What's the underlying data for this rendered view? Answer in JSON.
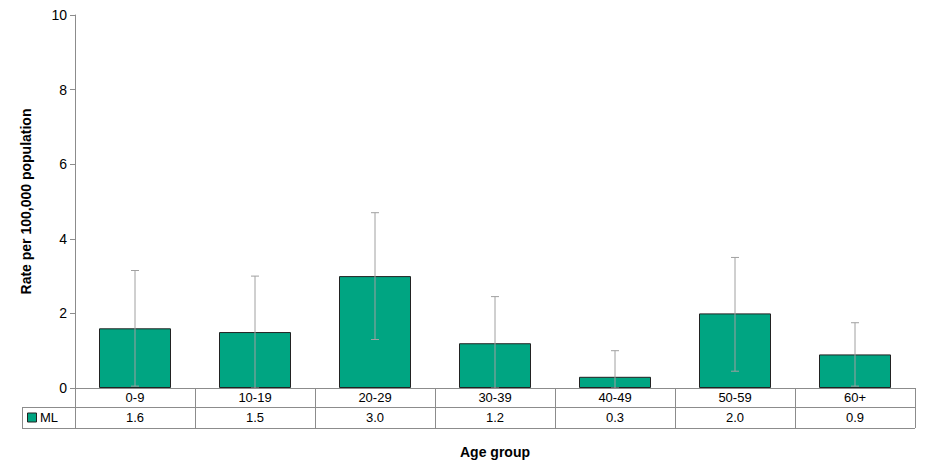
{
  "chart_data": {
    "type": "bar",
    "categories": [
      "0-9",
      "10-19",
      "20-29",
      "30-39",
      "40-49",
      "50-59",
      "60+"
    ],
    "series": [
      {
        "name": "ML",
        "color": "#00a582",
        "values": [
          1.6,
          1.5,
          3.0,
          1.2,
          0.3,
          2.0,
          0.9
        ],
        "value_labels": [
          "1.6",
          "1.5",
          "3.0",
          "1.2",
          "0.3",
          "2.0",
          "0.9"
        ],
        "error_low": [
          0.05,
          0.0,
          1.3,
          0.0,
          0.0,
          0.45,
          0.05
        ],
        "error_high": [
          3.15,
          3.0,
          4.7,
          2.45,
          1.0,
          3.5,
          1.75
        ]
      }
    ],
    "xlabel": "Age group",
    "ylabel": "Rate per 100,000 population",
    "ylim": [
      0,
      10
    ],
    "yticks": [
      0,
      2,
      4,
      6,
      8,
      10
    ],
    "grid": false
  }
}
